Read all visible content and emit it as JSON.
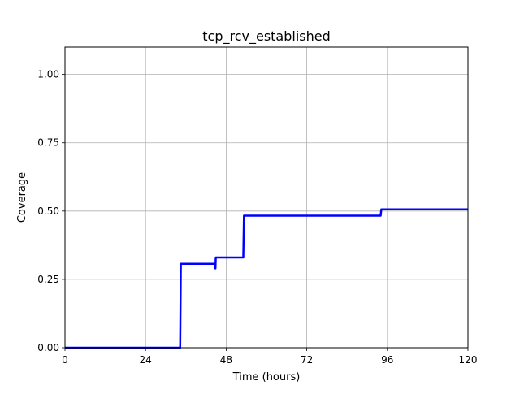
{
  "chart_data": {
    "type": "line",
    "title": "tcp_rcv_established",
    "xlabel": "Time (hours)",
    "ylabel": "Coverage",
    "xlim": [
      0,
      120
    ],
    "ylim": [
      0,
      1.1
    ],
    "xticks": [
      0,
      24,
      48,
      72,
      96,
      120
    ],
    "xtick_labels": [
      "0",
      "24",
      "48",
      "72",
      "96",
      "120"
    ],
    "yticks": [
      0,
      0.25,
      0.5,
      0.75,
      1.0
    ],
    "ytick_labels": [
      "0.00",
      "0.25",
      "0.50",
      "0.75",
      "1.00"
    ],
    "grid": true,
    "series": [
      {
        "color": "#0000ff",
        "x": [
          0,
          34.3,
          34.5,
          44.6,
          44.8,
          44.9,
          53.1,
          53.3,
          94.0,
          94.2,
          120
        ],
        "y": [
          0,
          0,
          0.307,
          0.307,
          0.29,
          0.33,
          0.33,
          0.483,
          0.483,
          0.506,
          0.506
        ]
      }
    ]
  }
}
